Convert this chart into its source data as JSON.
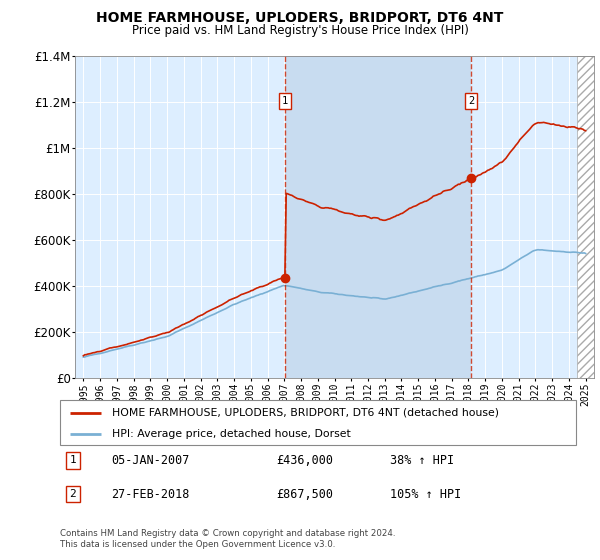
{
  "title": "HOME FARMHOUSE, UPLODERS, BRIDPORT, DT6 4NT",
  "subtitle": "Price paid vs. HM Land Registry's House Price Index (HPI)",
  "legend_line1": "HOME FARMHOUSE, UPLODERS, BRIDPORT, DT6 4NT (detached house)",
  "legend_line2": "HPI: Average price, detached house, Dorset",
  "footnote": "Contains HM Land Registry data © Crown copyright and database right 2024.\nThis data is licensed under the Open Government Licence v3.0.",
  "sale1_label": "1",
  "sale1_date": "05-JAN-2007",
  "sale1_price": "£436,000",
  "sale1_hpi": "38% ↑ HPI",
  "sale2_label": "2",
  "sale2_date": "27-FEB-2018",
  "sale2_price": "£867,500",
  "sale2_hpi": "105% ↑ HPI",
  "sale1_x": 2007.04,
  "sale1_y": 436000,
  "sale2_x": 2018.15,
  "sale2_y": 867500,
  "ylim": [
    0,
    1400000
  ],
  "xlim": [
    1994.5,
    2025.5
  ],
  "yticks": [
    0,
    200000,
    400000,
    600000,
    800000,
    1000000,
    1200000,
    1400000
  ],
  "ytick_labels": [
    "£0",
    "£200K",
    "£400K",
    "£600K",
    "£800K",
    "£1M",
    "£1.2M",
    "£1.4M"
  ],
  "xticks": [
    1995,
    1996,
    1997,
    1998,
    1999,
    2000,
    2001,
    2002,
    2003,
    2004,
    2005,
    2006,
    2007,
    2008,
    2009,
    2010,
    2011,
    2012,
    2013,
    2014,
    2015,
    2016,
    2017,
    2018,
    2019,
    2020,
    2021,
    2022,
    2023,
    2024,
    2025
  ],
  "hpi_color": "#7ab0d4",
  "price_color": "#cc2200",
  "background_color": "#ddeeff",
  "shade_color": "#c8dcf0",
  "grid_color": "#ffffff",
  "hpi_scale": 436000,
  "hpi_base_x": 2007.04,
  "hpi_base_val": 100
}
